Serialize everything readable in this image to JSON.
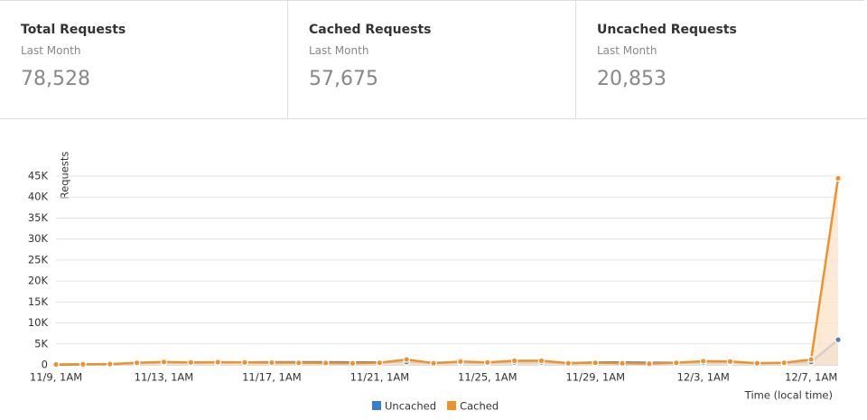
{
  "cards": [
    {
      "title": "Total Requests",
      "subtitle": "Last Month",
      "value": "78,528"
    },
    {
      "title": "Cached Requests",
      "subtitle": "Last Month",
      "value": "57,675"
    },
    {
      "title": "Uncached Requests",
      "subtitle": "Last Month",
      "value": "20,853"
    }
  ],
  "chart_data": {
    "type": "line",
    "y_label": "Requests",
    "x_label": "Time (local time)",
    "categories": [
      "11/9, 1AM",
      null,
      null,
      null,
      "11/13, 1AM",
      null,
      null,
      null,
      "11/17, 1AM",
      null,
      null,
      null,
      "11/21, 1AM",
      null,
      null,
      null,
      "11/25, 1AM",
      null,
      null,
      null,
      "11/29, 1AM",
      null,
      null,
      null,
      "12/3, 1AM",
      null,
      null,
      null,
      "12/7, 1AM",
      null
    ],
    "series": [
      {
        "name": "Uncached",
        "color": "#3a7dc9",
        "line_color": "#5a7ea8",
        "fill": "#d5d5d5",
        "values": [
          50,
          100,
          150,
          400,
          500,
          500,
          550,
          600,
          650,
          650,
          650,
          600,
          600,
          700,
          500,
          500,
          500,
          600,
          600,
          400,
          600,
          600,
          500,
          500,
          500,
          600,
          400,
          400,
          700,
          6000
        ]
      },
      {
        "name": "Cached",
        "color": "#f0922b",
        "line_color": "#f0922b",
        "fill": "#fbe3cc",
        "values": [
          100,
          150,
          200,
          500,
          700,
          600,
          650,
          600,
          550,
          500,
          450,
          400,
          500,
          1300,
          400,
          800,
          600,
          1000,
          1000,
          400,
          500,
          400,
          300,
          500,
          900,
          800,
          400,
          500,
          1300,
          44500
        ]
      }
    ],
    "ylim": [
      0,
      45000
    ],
    "yticks": [
      0,
      {
        "value": 5000,
        "label": "5K"
      },
      {
        "value": 10000,
        "label": "10K"
      },
      {
        "value": 15000,
        "label": "15K"
      },
      {
        "value": 20000,
        "label": "20K"
      },
      {
        "value": 25000,
        "label": "25K"
      },
      {
        "value": 30000,
        "label": "30K"
      },
      {
        "value": 35000,
        "label": "35K"
      },
      {
        "value": 40000,
        "label": "40K"
      },
      {
        "value": 45000,
        "label": "45K"
      }
    ],
    "grid": true,
    "legend": "bottom"
  }
}
